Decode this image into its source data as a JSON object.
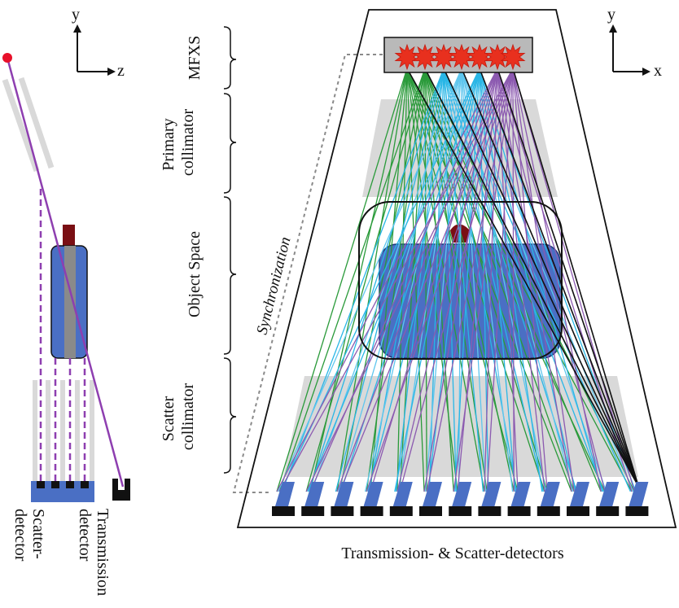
{
  "side_view": {
    "axis_y": "y",
    "axis_z": "z",
    "labels": {
      "scatter_detector": "Scatter-\ndetector",
      "transmission_detector": "Transmission\ndetector"
    }
  },
  "front_view": {
    "axis_y": "y",
    "axis_x": "x",
    "source_label": "MFXS",
    "primary_collimator": "Primary\ncollimator",
    "object_space": "Object Space",
    "scatter_collimator": "Scatter\ncollimator",
    "synchronization": "Synchronization",
    "bottom_caption": "Transmission- & Scatter-detectors"
  },
  "colors": {
    "object": "#4a6fc4",
    "object_dark": "#1f3b7a",
    "collimator": "#d9d9d9",
    "source_burst": "#e8301e",
    "detector_blue": "#4a6fc4",
    "detector_black": "#111111",
    "purple": "#8e3fb0",
    "green": "#2a9a3a",
    "cyan": "#29b6e6",
    "lightblue": "#5fc6ee",
    "violet": "#8c5ab0",
    "black": "#111111",
    "red_dot": "#e8102a",
    "dark_red": "#7a0f14"
  }
}
